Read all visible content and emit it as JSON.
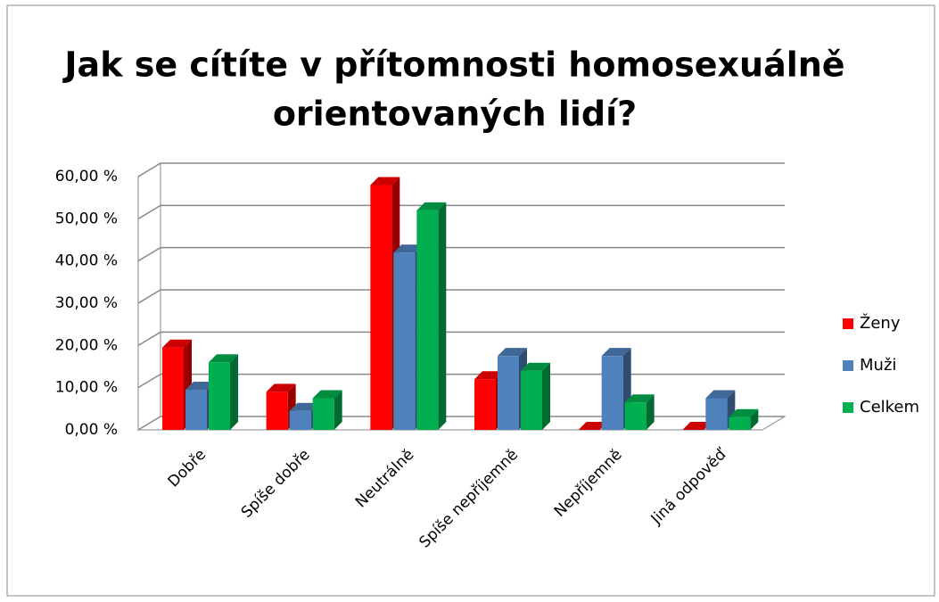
{
  "chart_data": {
    "type": "bar3d",
    "title": [
      "Jak se cítíte v přítomnosti homosexuálně",
      "orientovaných lidí?"
    ],
    "categories": [
      "Dobře",
      "Spíše dobře",
      "Neutrálně",
      "Spíše nepříjemně",
      "Nepříjemně",
      "Jiná odpověď"
    ],
    "series": [
      {
        "name": "Ženy",
        "color": "#ff0000",
        "values": [
          19.5,
          9,
          58,
          12,
          0,
          0
        ]
      },
      {
        "name": "Muži",
        "color": "#4f81bd",
        "values": [
          9.5,
          4.5,
          42,
          17.5,
          17.5,
          7.5
        ]
      },
      {
        "name": "Celkem",
        "color": "#00b050",
        "values": [
          16,
          7.5,
          52,
          14,
          6.5,
          3
        ]
      }
    ],
    "ylim": [
      0,
      60
    ],
    "yticks": [
      {
        "value": 0,
        "label": "0,00 %"
      },
      {
        "value": 10,
        "label": "10,00 %"
      },
      {
        "value": 20,
        "label": "20,00 %"
      },
      {
        "value": 30,
        "label": "30,00 %"
      },
      {
        "value": 40,
        "label": "40,00 %"
      },
      {
        "value": 50,
        "label": "50,00 %"
      },
      {
        "value": 60,
        "label": "60,00 %"
      }
    ],
    "grid": true,
    "legend": "right"
  }
}
